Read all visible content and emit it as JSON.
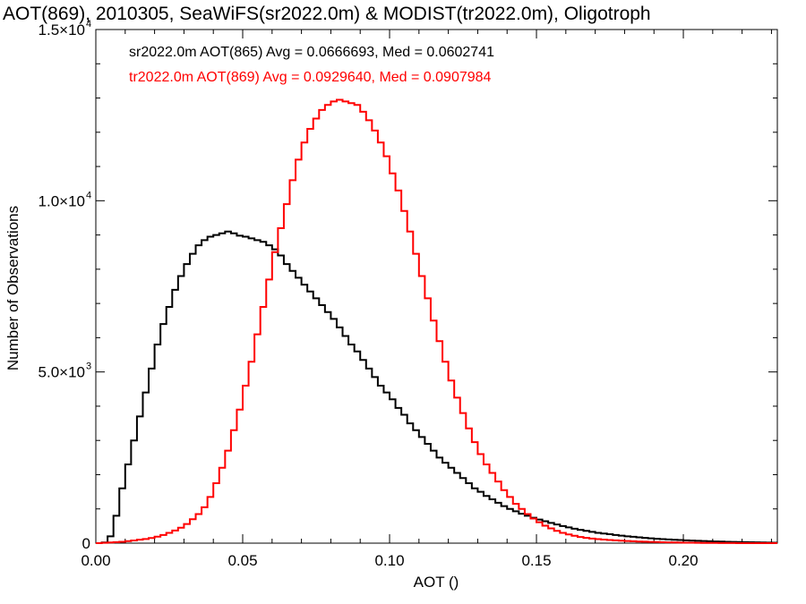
{
  "chart_data": {
    "type": "line",
    "title": "AOT(869), 2010305, SeaWiFS(sr2022.0m) & MODIST(tr2022.0m), Oligotroph",
    "xlabel": "AOT ()",
    "ylabel": "Number of Observations",
    "xlim": [
      0,
      0.232
    ],
    "ylim": [
      0,
      15000
    ],
    "x_ticks": [
      0.0,
      0.05,
      0.1,
      0.15,
      0.2
    ],
    "x_tick_labels": [
      "0.00",
      "0.05",
      "0.10",
      "0.15",
      "0.20"
    ],
    "y_ticks": [
      0,
      5000,
      10000,
      15000
    ],
    "y_tick_labels": [
      {
        "mantissa": "0",
        "exp": ""
      },
      {
        "mantissa": "5.0×10",
        "exp": "3"
      },
      {
        "mantissa": "1.0×10",
        "exp": "4"
      },
      {
        "mantissa": "1.5×10",
        "exp": "4"
      }
    ],
    "grid": false,
    "legend_position": "top-left",
    "series": [
      {
        "name": "sr2022.0m AOT(865) Avg = 0.0666693, Med = 0.0602741",
        "color": "#000000",
        "x": [
          0.0,
          0.002,
          0.004,
          0.006,
          0.008,
          0.01,
          0.012,
          0.014,
          0.016,
          0.018,
          0.02,
          0.022,
          0.024,
          0.026,
          0.028,
          0.03,
          0.032,
          0.034,
          0.036,
          0.038,
          0.04,
          0.042,
          0.044,
          0.046,
          0.048,
          0.05,
          0.052,
          0.054,
          0.056,
          0.058,
          0.06,
          0.062,
          0.064,
          0.066,
          0.068,
          0.07,
          0.072,
          0.074,
          0.076,
          0.078,
          0.08,
          0.082,
          0.084,
          0.086,
          0.088,
          0.09,
          0.092,
          0.094,
          0.096,
          0.098,
          0.1,
          0.102,
          0.104,
          0.106,
          0.108,
          0.11,
          0.112,
          0.114,
          0.116,
          0.118,
          0.12,
          0.122,
          0.124,
          0.126,
          0.128,
          0.13,
          0.132,
          0.134,
          0.136,
          0.138,
          0.14,
          0.142,
          0.144,
          0.146,
          0.148,
          0.15,
          0.152,
          0.154,
          0.156,
          0.158,
          0.16,
          0.162,
          0.164,
          0.166,
          0.168,
          0.17,
          0.172,
          0.174,
          0.176,
          0.178,
          0.18,
          0.182,
          0.184,
          0.186,
          0.188,
          0.19,
          0.192,
          0.194,
          0.196,
          0.198,
          0.2,
          0.202,
          0.204,
          0.206,
          0.208,
          0.21,
          0.212,
          0.214,
          0.216,
          0.218,
          0.22,
          0.222,
          0.224,
          0.226,
          0.228,
          0.23
        ],
        "y": [
          0,
          20,
          200,
          800,
          1600,
          2300,
          3000,
          3700,
          4400,
          5100,
          5800,
          6400,
          6900,
          7400,
          7800,
          8150,
          8450,
          8700,
          8850,
          8950,
          9000,
          9050,
          9100,
          9050,
          8980,
          8950,
          8900,
          8850,
          8800,
          8700,
          8580,
          8400,
          8150,
          7950,
          7750,
          7550,
          7350,
          7150,
          6950,
          6750,
          6550,
          6300,
          6050,
          5800,
          5600,
          5350,
          5100,
          4850,
          4600,
          4400,
          4200,
          3950,
          3750,
          3500,
          3300,
          3100,
          2900,
          2700,
          2500,
          2350,
          2200,
          2050,
          1900,
          1750,
          1600,
          1500,
          1380,
          1280,
          1180,
          1080,
          1000,
          930,
          860,
          800,
          740,
          690,
          640,
          590,
          545,
          500,
          460,
          420,
          390,
          360,
          330,
          300,
          280,
          260,
          240,
          220,
          200,
          185,
          170,
          155,
          140,
          128,
          117,
          107,
          98,
          90,
          82,
          75,
          68,
          62,
          56,
          50,
          45,
          40,
          36,
          32,
          28,
          25,
          22,
          19,
          16,
          14
        ]
      },
      {
        "name": "tr2022.0m AOT(869) Avg = 0.0929640, Med = 0.0907984",
        "color": "#ff0000",
        "x": [
          0.0,
          0.002,
          0.004,
          0.006,
          0.008,
          0.01,
          0.012,
          0.014,
          0.016,
          0.018,
          0.02,
          0.022,
          0.024,
          0.026,
          0.028,
          0.03,
          0.032,
          0.034,
          0.036,
          0.038,
          0.04,
          0.042,
          0.044,
          0.046,
          0.048,
          0.05,
          0.052,
          0.054,
          0.056,
          0.058,
          0.06,
          0.062,
          0.064,
          0.066,
          0.068,
          0.07,
          0.072,
          0.074,
          0.076,
          0.078,
          0.08,
          0.082,
          0.084,
          0.086,
          0.088,
          0.09,
          0.092,
          0.094,
          0.096,
          0.098,
          0.1,
          0.102,
          0.104,
          0.106,
          0.108,
          0.11,
          0.112,
          0.114,
          0.116,
          0.118,
          0.12,
          0.122,
          0.124,
          0.126,
          0.128,
          0.13,
          0.132,
          0.134,
          0.136,
          0.138,
          0.14,
          0.142,
          0.144,
          0.146,
          0.148,
          0.15,
          0.152,
          0.154,
          0.156,
          0.158,
          0.16,
          0.162,
          0.164,
          0.166,
          0.168,
          0.17,
          0.172,
          0.174,
          0.176,
          0.178,
          0.18,
          0.182,
          0.184,
          0.186,
          0.188,
          0.19,
          0.192,
          0.194,
          0.196,
          0.198,
          0.2,
          0.202,
          0.204,
          0.206,
          0.208,
          0.21,
          0.212,
          0.214,
          0.216,
          0.218,
          0.22,
          0.222,
          0.224,
          0.226,
          0.228,
          0.23
        ],
        "y": [
          0,
          10,
          20,
          30,
          40,
          60,
          80,
          100,
          120,
          150,
          190,
          240,
          300,
          370,
          450,
          560,
          700,
          850,
          1050,
          1350,
          1750,
          2200,
          2700,
          3300,
          3900,
          4600,
          5300,
          6100,
          6900,
          7700,
          8500,
          9200,
          9900,
          10600,
          11200,
          11700,
          12100,
          12400,
          12650,
          12800,
          12900,
          12950,
          12900,
          12850,
          12800,
          12600,
          12350,
          12050,
          11700,
          11300,
          10800,
          10300,
          9700,
          9100,
          8450,
          7800,
          7150,
          6500,
          5900,
          5300,
          4750,
          4250,
          3800,
          3350,
          2950,
          2600,
          2300,
          2050,
          1800,
          1550,
          1350,
          1150,
          1000,
          850,
          720,
          610,
          510,
          430,
          360,
          300,
          255,
          215,
          180,
          155,
          135,
          118,
          104,
          92,
          81,
          71,
          62,
          54,
          47,
          41,
          36,
          31,
          27,
          23,
          20,
          17,
          14,
          12,
          10,
          8,
          6,
          5,
          4,
          3,
          2,
          1,
          1,
          0,
          0,
          0,
          0,
          0
        ]
      }
    ]
  }
}
